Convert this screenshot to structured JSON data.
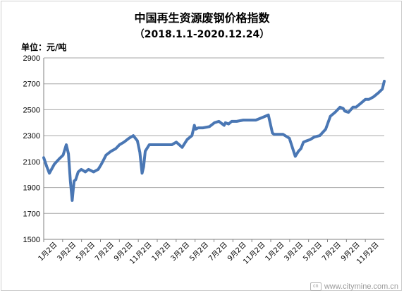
{
  "chart_data": {
    "type": "line",
    "title": "中国再生资源废钢价格指数",
    "subtitle": "（2018.1.1-2020.12.24）",
    "unit_label": "单位：元/吨",
    "ylim": [
      1500,
      2900
    ],
    "yticks": [
      1500,
      1700,
      1900,
      2100,
      2300,
      2500,
      2700,
      2900
    ],
    "grid": "horizontal",
    "legend": "none",
    "line_color": "#4a77b4",
    "x_tick_labels": [
      "1月2日",
      "3月2日",
      "5月2日",
      "7月2日",
      "9月2日",
      "11月2日",
      "1月2日",
      "3月2日",
      "5月2日",
      "7月2日",
      "9月2日",
      "11月2日",
      "1月2日",
      "3月2日",
      "5月2日",
      "7月2日",
      "9月2日",
      "11月2日"
    ],
    "x": [
      "2018-01-02",
      "2018-01-12",
      "2018-01-20",
      "2018-02-05",
      "2018-02-20",
      "2018-03-05",
      "2018-03-15",
      "2018-03-22",
      "2018-03-28",
      "2018-04-03",
      "2018-04-06",
      "2018-04-09",
      "2018-04-14",
      "2018-04-22",
      "2018-05-02",
      "2018-05-15",
      "2018-05-25",
      "2018-06-10",
      "2018-06-25",
      "2018-07-05",
      "2018-07-20",
      "2018-08-05",
      "2018-08-20",
      "2018-09-01",
      "2018-09-15",
      "2018-10-01",
      "2018-10-15",
      "2018-10-28",
      "2018-11-05",
      "2018-11-12",
      "2018-11-17",
      "2018-11-22",
      "2018-12-05",
      "2018-12-20",
      "2019-01-02",
      "2019-01-20",
      "2019-02-15",
      "2019-03-01",
      "2019-03-20",
      "2019-04-05",
      "2019-04-20",
      "2019-04-28",
      "2019-05-02",
      "2019-05-10",
      "2019-05-25",
      "2019-06-15",
      "2019-07-01",
      "2019-07-15",
      "2019-08-01",
      "2019-08-05",
      "2019-08-15",
      "2019-08-25",
      "2019-09-10",
      "2019-10-01",
      "2019-10-20",
      "2019-11-10",
      "2019-12-01",
      "2019-12-20",
      "2020-01-02",
      "2020-01-08",
      "2020-01-20",
      "2020-02-05",
      "2020-02-25",
      "2020-03-15",
      "2020-03-25",
      "2020-04-02",
      "2020-04-10",
      "2020-04-20",
      "2020-05-02",
      "2020-05-15",
      "2020-06-01",
      "2020-06-20",
      "2020-07-05",
      "2020-07-20",
      "2020-08-05",
      "2020-08-15",
      "2020-08-20",
      "2020-09-01",
      "2020-09-15",
      "2020-09-25",
      "2020-10-10",
      "2020-10-25",
      "2020-11-05",
      "2020-11-20",
      "2020-12-05",
      "2020-12-18",
      "2020-12-24"
    ],
    "values": [
      2130,
      2060,
      2010,
      2080,
      2120,
      2150,
      2230,
      2160,
      1950,
      1800,
      1880,
      1950,
      1960,
      2020,
      2040,
      2020,
      2040,
      2020,
      2040,
      2080,
      2150,
      2180,
      2200,
      2230,
      2250,
      2280,
      2300,
      2260,
      2170,
      2010,
      2060,
      2180,
      2230,
      2230,
      2230,
      2230,
      2230,
      2250,
      2210,
      2270,
      2300,
      2380,
      2350,
      2360,
      2360,
      2370,
      2400,
      2410,
      2380,
      2400,
      2390,
      2410,
      2410,
      2420,
      2420,
      2420,
      2440,
      2460,
      2320,
      2310,
      2310,
      2310,
      2280,
      2140,
      2180,
      2200,
      2250,
      2260,
      2270,
      2290,
      2300,
      2350,
      2450,
      2480,
      2520,
      2510,
      2490,
      2480,
      2520,
      2520,
      2550,
      2580,
      2580,
      2600,
      2630,
      2660,
      2720
    ]
  },
  "watermark": {
    "logo_text": "cn",
    "text": "www.citymine.com.cn"
  }
}
